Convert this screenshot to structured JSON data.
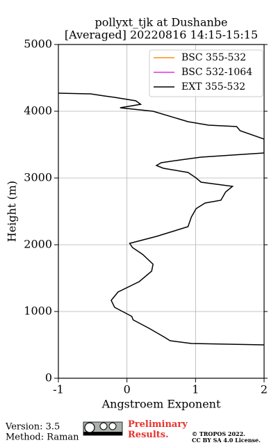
{
  "chart_data": {
    "type": "line",
    "title": "pollyxt_tjk at Dushanbe",
    "subtitle": "[Averaged] 20220816 14:15-15:15",
    "x_label": "Angstroem Exponent",
    "y_label": "Height (m)",
    "xlim": [
      -1,
      2
    ],
    "xticks": [
      -1,
      0,
      1,
      2
    ],
    "ylim": [
      0,
      5000
    ],
    "yticks": [
      0,
      1000,
      2000,
      3000,
      4000,
      5000
    ],
    "grid": true,
    "legend": "upper right",
    "y": [
      4271,
      4260,
      4229,
      4208,
      4156,
      4104,
      4052,
      4000,
      3844,
      3792,
      3771,
      3708,
      3583,
      3375,
      3312,
      3271,
      3229,
      3188,
      3146,
      3083,
      3000,
      2938,
      2875,
      2792,
      2667,
      2625,
      2542,
      2417,
      2271,
      2125,
      2021,
      1958,
      1854,
      1708,
      1604,
      1448,
      1292,
      1167,
      1063,
      927,
      875,
      750,
      625,
      563,
      521,
      500
    ],
    "series": [
      {
        "name": "BSC 355-532",
        "color": "#ff8c1a",
        "values": [
          null,
          null,
          null,
          null,
          null,
          null,
          null,
          null,
          null,
          null,
          null,
          null,
          null,
          null,
          null,
          null,
          null,
          null,
          null,
          null,
          null,
          null,
          null,
          null,
          null,
          null,
          null,
          null,
          null,
          null,
          null,
          null,
          null,
          null,
          null,
          null,
          null,
          null,
          null,
          null,
          null,
          null,
          null,
          null,
          null,
          null
        ]
      },
      {
        "name": "BSC 532-1064",
        "color": "#e030e0",
        "values": [
          null,
          null,
          null,
          null,
          null,
          null,
          null,
          null,
          null,
          null,
          null,
          null,
          null,
          null,
          null,
          null,
          null,
          null,
          null,
          null,
          null,
          null,
          null,
          null,
          null,
          null,
          null,
          null,
          null,
          null,
          null,
          null,
          null,
          null,
          null,
          null,
          null,
          null,
          null,
          null,
          null,
          null,
          null,
          null,
          null,
          null
        ]
      },
      {
        "name": "EXT 355-532",
        "color": "#000000",
        "values": [
          -1,
          -0.53,
          -0.33,
          -0.18,
          0.13,
          0.2,
          -0.1,
          0.38,
          0.89,
          1.19,
          1.6,
          1.65,
          2.0,
          2.0,
          1.08,
          0.78,
          0.5,
          0.43,
          0.53,
          0.89,
          1.01,
          1.08,
          1.54,
          1.44,
          1.37,
          1.14,
          1.01,
          0.94,
          0.89,
          0.43,
          0.04,
          0.08,
          0.23,
          0.38,
          0.36,
          0.18,
          -0.13,
          -0.23,
          -0.18,
          0.07,
          0.09,
          0.32,
          0.53,
          0.63,
          0.94,
          2.0
        ]
      }
    ]
  },
  "footer": {
    "version": "Version: 3.5",
    "method": "Method: Raman",
    "status": "Preliminary Results.",
    "copyright": "© TROPOS 2022.",
    "license": "CC BY SA 4.0 License."
  }
}
